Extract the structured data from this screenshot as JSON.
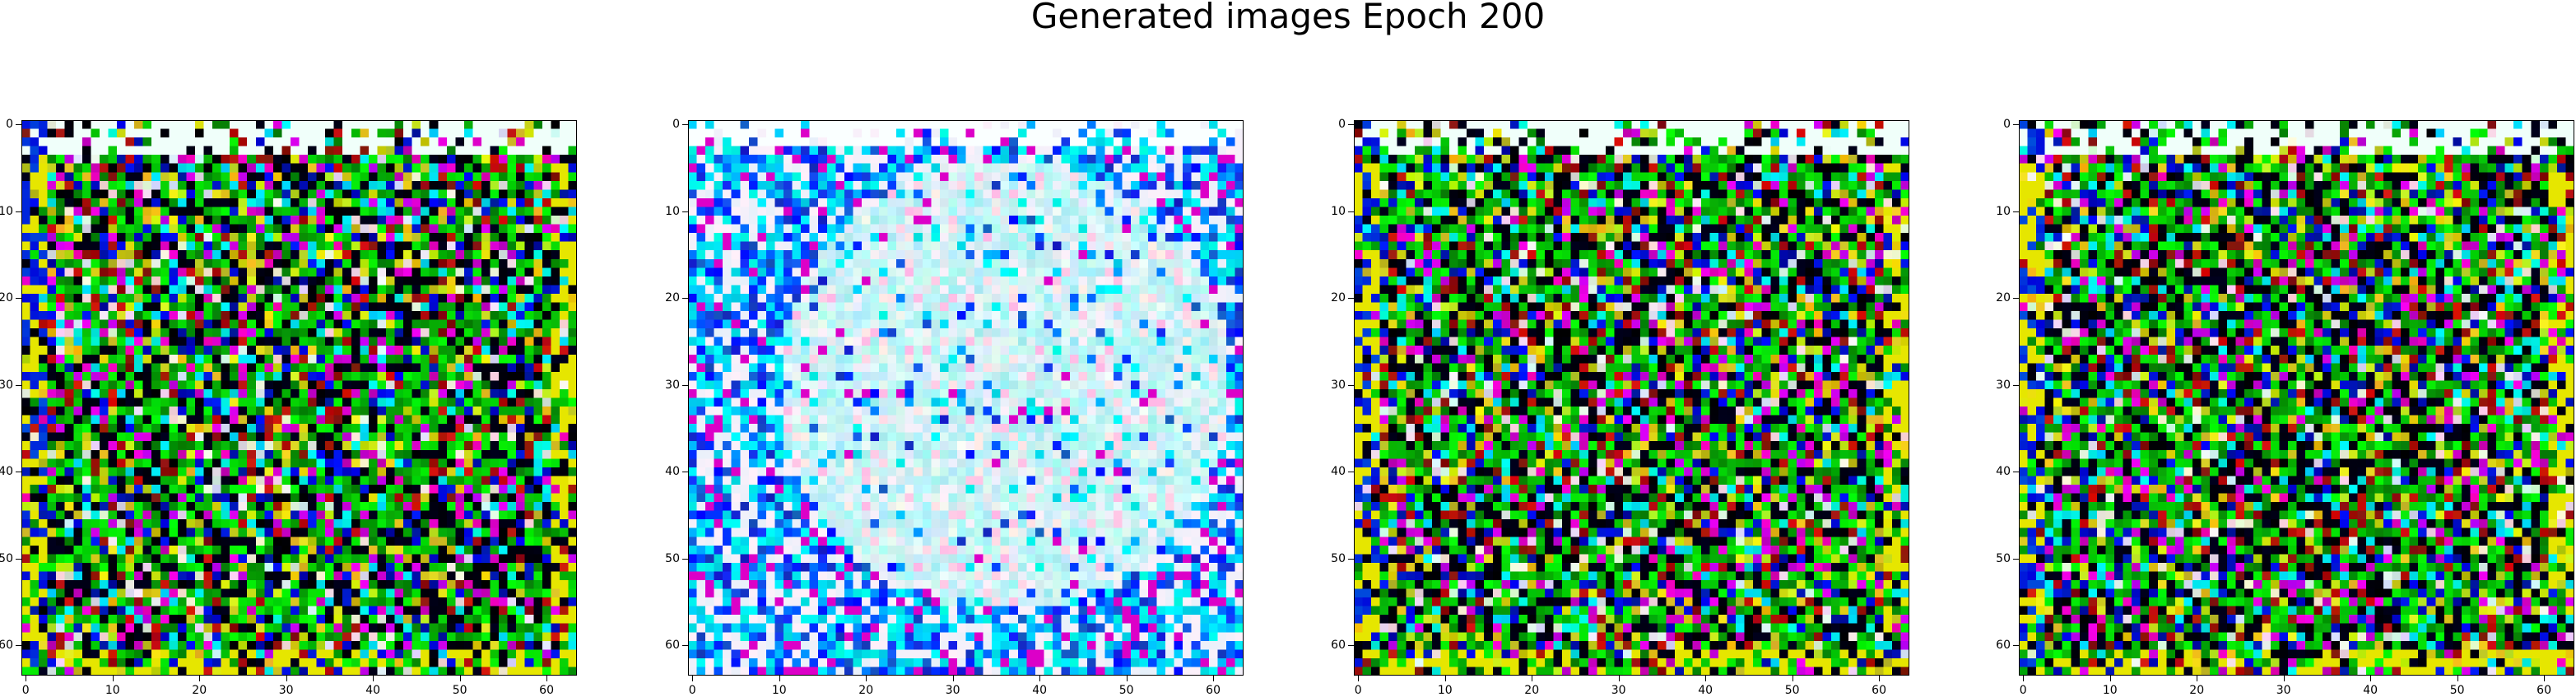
{
  "figure": {
    "title": "Generated images Epoch 200"
  },
  "chart_data": [
    {
      "type": "heatmap",
      "xlim": [
        0,
        63
      ],
      "ylim": [
        63,
        0
      ],
      "xticks": [
        0,
        10,
        20,
        30,
        40,
        50,
        60
      ],
      "yticks": [
        0,
        10,
        20,
        30,
        40,
        50,
        60
      ],
      "grid": false,
      "palette": "dark-noise"
    },
    {
      "type": "heatmap",
      "xlim": [
        0,
        63
      ],
      "ylim": [
        63,
        0
      ],
      "xticks": [
        0,
        10,
        20,
        30,
        40,
        50,
        60
      ],
      "yticks": [
        0,
        10,
        20,
        30,
        40,
        50,
        60
      ],
      "grid": false,
      "palette": "light-cyan-white"
    },
    {
      "type": "heatmap",
      "xlim": [
        0,
        63
      ],
      "ylim": [
        63,
        0
      ],
      "xticks": [
        0,
        10,
        20,
        30,
        40,
        50,
        60
      ],
      "yticks": [
        0,
        10,
        20,
        30,
        40,
        50,
        60
      ],
      "grid": false,
      "palette": "dark-noise"
    },
    {
      "type": "heatmap",
      "xlim": [
        0,
        63
      ],
      "ylim": [
        63,
        0
      ],
      "xticks": [
        0,
        10,
        20,
        30,
        40,
        50,
        60
      ],
      "yticks": [
        0,
        10,
        20,
        30,
        40,
        50,
        60
      ],
      "grid": false,
      "palette": "dark-noise"
    }
  ]
}
